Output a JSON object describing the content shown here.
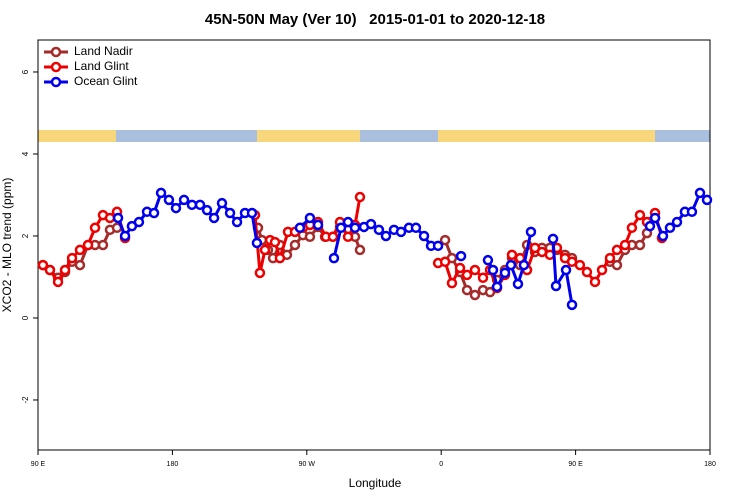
{
  "chart_data": {
    "type": "line",
    "title": "45N-50N May (Ver 10)   2015-01-01 to 2020-12-18",
    "xlabel": "Longitude",
    "ylabel": "XCO2 - MLO trend (ppm)",
    "xlim": [
      90,
      540
    ],
    "ylim": [
      -3.22,
      6.78
    ],
    "xticks": [
      {
        "value": 90,
        "label": "90 E"
      },
      {
        "value": 180,
        "label": "180"
      },
      {
        "value": 270,
        "label": "90 W"
      },
      {
        "value": 360,
        "label": "0"
      },
      {
        "value": 450,
        "label": "90 E"
      },
      {
        "value": 540,
        "label": "180"
      }
    ],
    "yticks": [
      -2,
      0,
      2,
      4,
      6
    ],
    "legend": "topleft",
    "series": [
      {
        "name": "Land Nadir",
        "color": "#a52a2a",
        "x": [
          93.3,
          98.0,
          103.4,
          108.1,
          112.8,
          118.1,
          123.5,
          128.2,
          133.5,
          138.2,
          142.9,
          null,
          237.3,
          240.0,
          244.0,
          247.4,
          252.0,
          256.7,
          262.1,
          267.4,
          272.1,
          277.5,
          282.2,
          287.5,
          292.2,
          297.6,
          302.3,
          305.6,
          null,
          362.6,
          367.2,
          372.6,
          377.3,
          382.6,
          388.0,
          392.7,
          397.4,
          402.7,
          407.4,
          412.8,
          417.5,
          422.8,
          427.5,
          432.8,
          437.5,
          442.9,
          447.6,
          null,
          473.0,
          477.7,
          483.1,
          487.7,
          493.1,
          497.8,
          503.2
        ],
        "values": [
          1.29,
          1.17,
          0.98,
          1.12,
          1.37,
          1.29,
          1.78,
          1.78,
          1.78,
          2.15,
          2.2,
          null,
          2.2,
          1.9,
          1.66,
          1.46,
          1.78,
          1.54,
          1.78,
          2.02,
          1.98,
          2.22,
          1.98,
          1.98,
          2.22,
          2.15,
          1.98,
          1.66,
          null,
          1.9,
          1.46,
          1.12,
          0.68,
          0.56,
          0.68,
          0.63,
          0.93,
          1.17,
          1.46,
          1.29,
          1.78,
          1.61,
          1.71,
          1.71,
          1.66,
          1.54,
          1.46,
          null,
          1.37,
          1.29,
          1.66,
          1.78,
          1.78,
          2.07,
          2.44
        ]
      },
      {
        "name": "Land Glint",
        "color": "#ee0000",
        "x": [
          93.3,
          98.0,
          103.4,
          108.1,
          112.8,
          118.1,
          123.5,
          128.2,
          133.5,
          138.2,
          142.9,
          148.3,
          null,
          235.3,
          238.6,
          242.0,
          245.4,
          248.7,
          252.0,
          257.4,
          262.1,
          267.4,
          272.1,
          277.5,
          282.8,
          287.5,
          292.2,
          297.6,
          302.3,
          305.6,
          null,
          357.9,
          362.6,
          367.2,
          372.6,
          377.3,
          382.6,
          388.0,
          392.7,
          397.4,
          402.7,
          407.4,
          412.8,
          417.5,
          422.8,
          427.5,
          432.8,
          437.5,
          442.9,
          447.6,
          452.9,
          457.6,
          463.0,
          467.7,
          473.0,
          477.7,
          483.1,
          487.7,
          493.1,
          497.8,
          503.2,
          507.8
        ],
        "values": [
          1.29,
          1.17,
          0.88,
          1.17,
          1.46,
          1.66,
          1.78,
          2.2,
          2.51,
          2.44,
          2.59,
          1.95,
          null,
          2.51,
          1.1,
          1.66,
          1.9,
          1.85,
          1.46,
          2.1,
          2.1,
          2.2,
          2.27,
          2.34,
          1.98,
          1.98,
          2.34,
          1.98,
          2.27,
          2.95,
          null,
          1.34,
          1.37,
          0.85,
          1.22,
          1.05,
          1.17,
          0.98,
          1.17,
          0.73,
          1.05,
          1.54,
          1.46,
          1.17,
          1.71,
          1.61,
          1.54,
          1.71,
          1.46,
          1.37,
          1.29,
          1.12,
          0.88,
          1.17,
          1.46,
          1.66,
          1.78,
          2.2,
          2.51,
          2.34,
          2.56,
          1.95
        ]
      },
      {
        "name": "Ocean Glint",
        "color": "#0000ee",
        "x": [
          143.6,
          148.3,
          152.9,
          157.6,
          163.0,
          167.7,
          172.4,
          177.7,
          182.4,
          187.8,
          193.1,
          198.5,
          203.2,
          207.9,
          213.2,
          218.6,
          223.3,
          228.6,
          233.3,
          236.6,
          null,
          265.4,
          272.1,
          277.5,
          null,
          288.2,
          292.9,
          297.6,
          302.3,
          308.3,
          313.0,
          318.3,
          323.0,
          328.4,
          333.1,
          338.4,
          343.1,
          348.5,
          353.2,
          357.9,
          null,
          373.3,
          null,
          391.3,
          394.7,
          397.4,
          402.7,
          406.7,
          411.4,
          415.4,
          420.1,
          null,
          434.9,
          436.9,
          443.6,
          447.6,
          null,
          499.8,
          503.2,
          508.5,
          513.2,
          517.9,
          523.2,
          527.9,
          533.3,
          538.0
        ],
        "values": [
          2.44,
          2.0,
          2.24,
          2.34,
          2.59,
          2.56,
          3.05,
          2.88,
          2.68,
          2.88,
          2.76,
          2.76,
          2.63,
          2.44,
          2.8,
          2.56,
          2.34,
          2.56,
          2.56,
          1.83,
          null,
          2.2,
          2.44,
          2.27,
          null,
          1.46,
          2.2,
          2.34,
          2.2,
          2.22,
          2.29,
          2.15,
          2.0,
          2.15,
          2.1,
          2.2,
          2.2,
          2.0,
          1.76,
          1.76,
          null,
          1.51,
          null,
          1.41,
          1.17,
          0.76,
          1.1,
          1.29,
          0.83,
          1.29,
          2.1,
          null,
          1.93,
          0.78,
          1.17,
          0.32,
          null,
          2.24,
          2.44,
          2.0,
          2.2,
          2.34,
          2.59,
          2.59,
          3.05,
          2.88
        ]
      }
    ]
  }
}
